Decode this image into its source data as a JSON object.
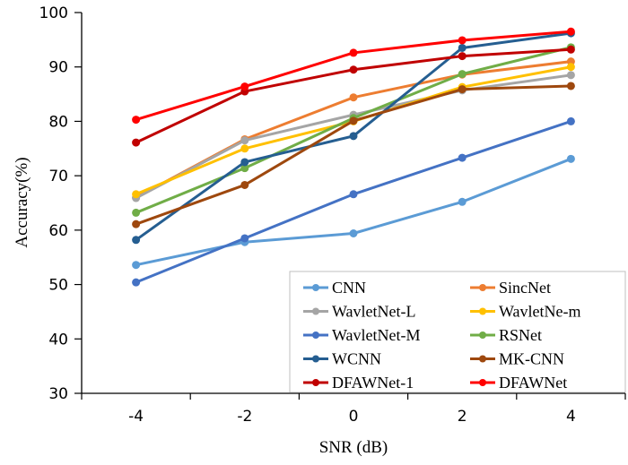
{
  "chart_data": {
    "type": "line",
    "title": "",
    "xlabel": "SNR (dB)",
    "ylabel": "Accuracy(%)",
    "categories": [
      "-4",
      "-2",
      "0",
      "2",
      "4"
    ],
    "ylim": [
      30,
      100
    ],
    "yticks": [
      "30",
      "40",
      "50",
      "60",
      "70",
      "80",
      "90",
      "100"
    ],
    "grid": false,
    "legend_position": "bottom-right",
    "series": [
      {
        "name": "CNN",
        "color": "#5B9BD5",
        "values": [
          53.6,
          57.8,
          59.4,
          65.2,
          73.1
        ]
      },
      {
        "name": "SincNet",
        "color": "#ED7D31",
        "values": [
          66.0,
          76.7,
          84.4,
          88.6,
          91.0
        ]
      },
      {
        "name": "WavletNet-L",
        "color": "#A5A5A5",
        "values": [
          65.9,
          76.5,
          81.2,
          85.7,
          88.5
        ]
      },
      {
        "name": "WavletNe-m",
        "color": "#FFC000",
        "values": [
          66.6,
          75.0,
          80.0,
          86.3,
          90.0
        ]
      },
      {
        "name": "WavletNet-M",
        "color": "#4472C4",
        "values": [
          50.4,
          58.5,
          66.6,
          73.3,
          80.0
        ]
      },
      {
        "name": "RSNet",
        "color": "#70AD47",
        "values": [
          63.2,
          71.4,
          80.6,
          88.7,
          93.6
        ]
      },
      {
        "name": "WCNN",
        "color": "#255E91",
        "values": [
          58.2,
          72.5,
          77.3,
          93.5,
          96.2
        ]
      },
      {
        "name": "MK-CNN",
        "color": "#9E480E",
        "values": [
          61.1,
          68.3,
          80.1,
          85.9,
          86.5
        ]
      },
      {
        "name": "DFAWNet-1",
        "color": "#C00000",
        "values": [
          76.1,
          85.5,
          89.5,
          92.0,
          93.2
        ]
      },
      {
        "name": "DFAWNet",
        "color": "#FF0000",
        "values": [
          80.3,
          86.4,
          92.6,
          94.9,
          96.5
        ]
      }
    ]
  }
}
